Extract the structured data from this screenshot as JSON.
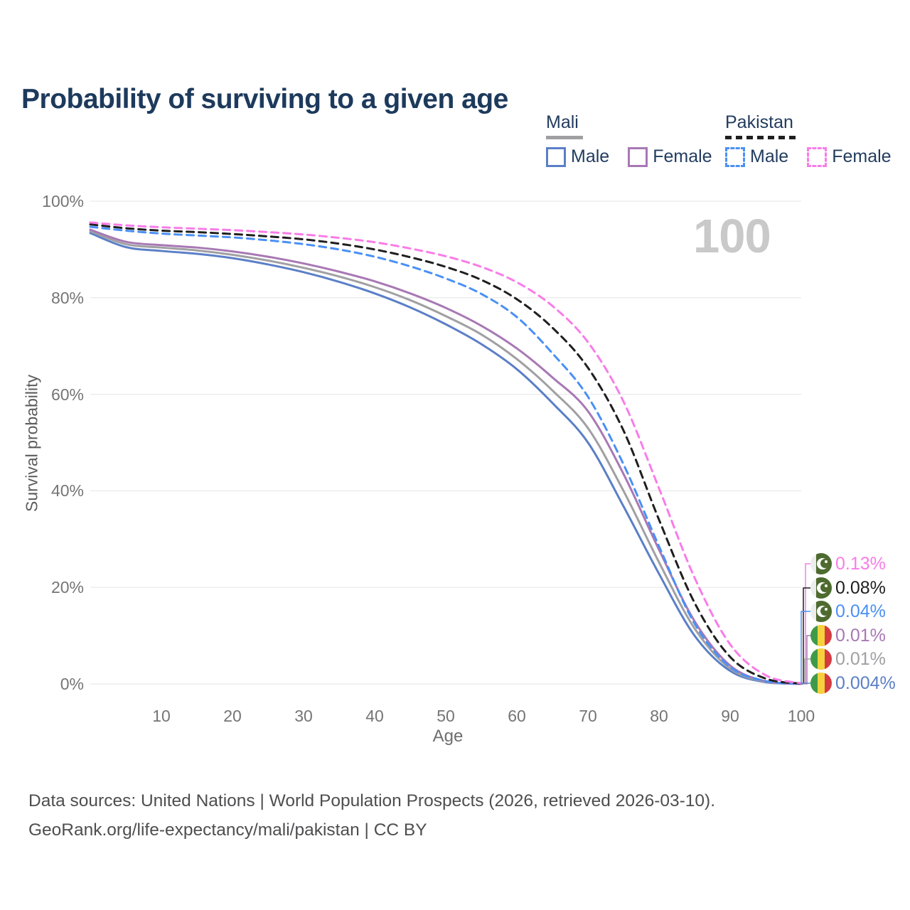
{
  "title": "Probability of surviving to a given age",
  "watermark": "100",
  "legend": {
    "groups": [
      {
        "name": "Mali",
        "line_style": "solid",
        "line_color": "#a0a0a3",
        "items": [
          {
            "label": "Male",
            "style": "solid",
            "color": "#5b7fc7"
          },
          {
            "label": "Female",
            "style": "solid",
            "color": "#a878b4"
          }
        ]
      },
      {
        "name": "Pakistan",
        "line_style": "dashed",
        "line_color": "#1f1f1f",
        "items": [
          {
            "label": "Male",
            "style": "dashed",
            "color": "#4a90f5"
          },
          {
            "label": "Female",
            "style": "dashed",
            "color": "#f97ce8"
          }
        ]
      }
    ]
  },
  "chart_data": {
    "type": "line",
    "title": "Probability of surviving to a given age",
    "xlabel": "Age",
    "ylabel": "Survival probability",
    "xlim": [
      0,
      100
    ],
    "ylim": [
      0,
      100
    ],
    "grid": "horizontal",
    "xticks": [
      10,
      20,
      30,
      40,
      50,
      60,
      70,
      80,
      90,
      100
    ],
    "ytick_values": [
      0,
      20,
      40,
      60,
      80,
      100
    ],
    "ytick_labels": [
      "0%",
      "20%",
      "40%",
      "60%",
      "80%",
      "100%"
    ],
    "x": [
      0,
      5,
      10,
      15,
      20,
      25,
      30,
      35,
      40,
      45,
      50,
      55,
      60,
      65,
      70,
      75,
      80,
      85,
      90,
      95,
      100
    ],
    "series": [
      {
        "name": "Mali Male",
        "country": "mali",
        "sex": "male",
        "color": "#5b7fc7",
        "dash": false,
        "end_label": "0.004%",
        "values": [
          93.4,
          90.5,
          89.7,
          89.1,
          88.2,
          86.9,
          85.3,
          83.3,
          80.9,
          78.0,
          74.5,
          70.4,
          65.2,
          58.2,
          50.0,
          36.8,
          22.8,
          10.0,
          2.7,
          0.35,
          0.004
        ]
      },
      {
        "name": "Mali",
        "country": "mali",
        "sex": "both",
        "color": "#a0a0a3",
        "dash": false,
        "end_label": "0.01%",
        "values": [
          93.8,
          91.1,
          90.4,
          89.8,
          88.9,
          87.7,
          86.2,
          84.4,
          82.2,
          79.5,
          76.2,
          72.4,
          67.3,
          60.8,
          53.0,
          40.0,
          25.2,
          11.5,
          3.2,
          0.45,
          0.01
        ]
      },
      {
        "name": "Mali Female",
        "country": "mali",
        "sex": "female",
        "color": "#a878b4",
        "dash": false,
        "end_label": "0.01%",
        "values": [
          94.1,
          91.6,
          90.9,
          90.4,
          89.6,
          88.5,
          87.1,
          85.4,
          83.4,
          80.9,
          77.9,
          74.2,
          69.5,
          63.5,
          56.5,
          43.5,
          27.8,
          13.0,
          3.8,
          0.55,
          0.01
        ]
      },
      {
        "name": "Pakistan Male",
        "country": "pakistan",
        "sex": "male",
        "color": "#4a90f5",
        "dash": true,
        "end_label": "0.04%",
        "values": [
          94.7,
          93.9,
          93.3,
          92.9,
          92.5,
          91.9,
          91.1,
          90.0,
          88.5,
          86.5,
          84.0,
          80.8,
          76.0,
          68.5,
          59.5,
          45.5,
          28.5,
          12.5,
          3.5,
          0.6,
          0.04
        ]
      },
      {
        "name": "Pakistan",
        "country": "pakistan",
        "sex": "both",
        "color": "#1f1f1f",
        "dash": true,
        "end_label": "0.08%",
        "values": [
          95.2,
          94.4,
          93.9,
          93.6,
          93.2,
          92.7,
          92.1,
          91.2,
          90.0,
          88.4,
          86.4,
          83.7,
          79.7,
          73.8,
          65.5,
          52.5,
          34.0,
          16.8,
          5.6,
          1.1,
          0.08
        ]
      },
      {
        "name": "Pakistan Female",
        "country": "pakistan",
        "sex": "female",
        "color": "#f97ce8",
        "dash": true,
        "end_label": "0.13%",
        "values": [
          95.6,
          95.0,
          94.6,
          94.3,
          94.0,
          93.6,
          93.1,
          92.4,
          91.5,
          90.2,
          88.6,
          86.4,
          83.2,
          78.3,
          70.8,
          58.5,
          40.5,
          22.0,
          8.2,
          1.8,
          0.13
        ]
      }
    ],
    "end_label_order_top_to_bottom": [
      "Pakistan Female",
      "Pakistan",
      "Pakistan Male",
      "Mali Female",
      "Mali",
      "Mali Male"
    ],
    "legend_position": "top-right"
  },
  "footer": {
    "line1": "Data sources: United Nations | World Population Prospects (2026, retrieved 2026-03-10).",
    "line2": "GeoRank.org/life-expectancy/mali/pakistan | CC BY"
  }
}
